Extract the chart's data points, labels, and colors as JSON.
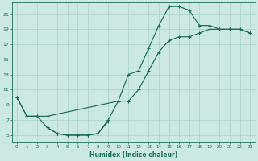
{
  "xlabel": "Humidex (Indice chaleur)",
  "bg_color": "#cce8e4",
  "grid_color": "#aacfcb",
  "line_color": "#1a6b5a",
  "xlim": [
    -0.5,
    23.5
  ],
  "ylim": [
    4.0,
    22.5
  ],
  "yticks": [
    5,
    7,
    9,
    11,
    13,
    15,
    17,
    19,
    21
  ],
  "xticks": [
    0,
    1,
    2,
    3,
    4,
    5,
    6,
    7,
    8,
    9,
    10,
    11,
    12,
    13,
    14,
    15,
    16,
    17,
    18,
    19,
    20,
    21,
    22,
    23
  ],
  "line_high_x": [
    0,
    1,
    2,
    3,
    4,
    5,
    6,
    7,
    8,
    9,
    10,
    11,
    12,
    13,
    14,
    15,
    16,
    17,
    18,
    19,
    20,
    21,
    22,
    23
  ],
  "line_high_y": [
    10,
    7.5,
    7.5,
    6.0,
    5.2,
    5.0,
    5.0,
    5.0,
    5.2,
    7.0,
    9.5,
    13.0,
    13.5,
    16.5,
    19.5,
    22.0,
    22.0,
    21.5,
    19.5,
    19.5,
    19.0,
    19.0,
    19.0,
    18.5
  ],
  "line_low_x": [
    3,
    4,
    5,
    6,
    7,
    8,
    9
  ],
  "line_low_y": [
    6.0,
    5.2,
    5.0,
    5.0,
    5.0,
    5.2,
    6.8
  ],
  "line_diag_x": [
    0,
    1,
    2,
    3,
    10,
    11,
    12,
    13,
    14,
    15,
    16,
    17,
    18,
    19,
    20,
    21,
    22,
    23
  ],
  "line_diag_y": [
    10,
    7.5,
    7.5,
    7.5,
    9.5,
    9.5,
    11.0,
    13.5,
    16.0,
    17.5,
    18.0,
    18.0,
    18.5,
    19.0,
    19.0,
    19.0,
    19.0,
    18.5
  ]
}
